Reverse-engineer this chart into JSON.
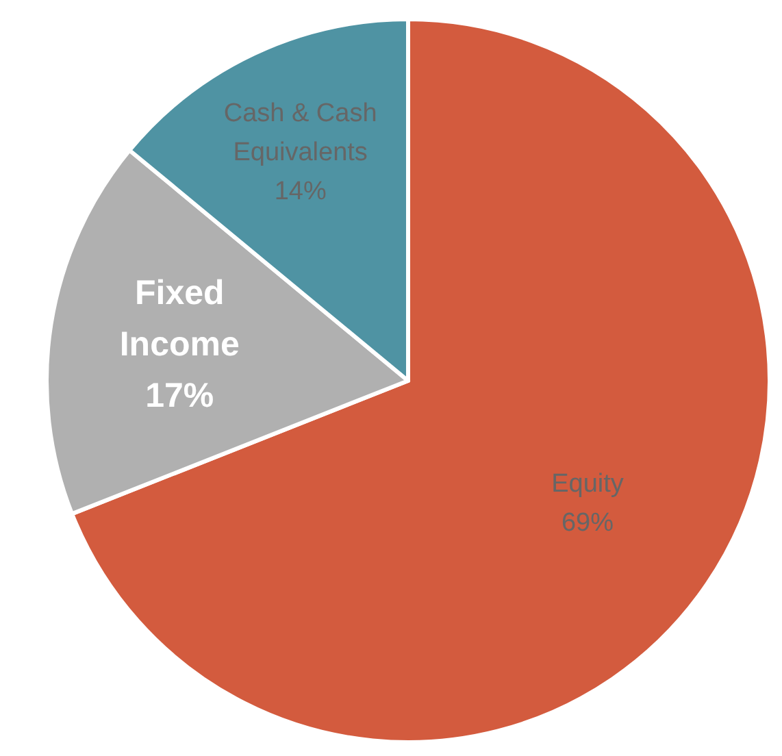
{
  "chart_data": {
    "type": "pie",
    "categories": [
      "Equity",
      "Fixed Income",
      "Cash & Cash Equivalents"
    ],
    "values": [
      69,
      17,
      14
    ],
    "colors": [
      "#d35b3e",
      "#b0b0b0",
      "#4f93a3"
    ],
    "value_labels": [
      "69%",
      "17%",
      "14%"
    ]
  }
}
